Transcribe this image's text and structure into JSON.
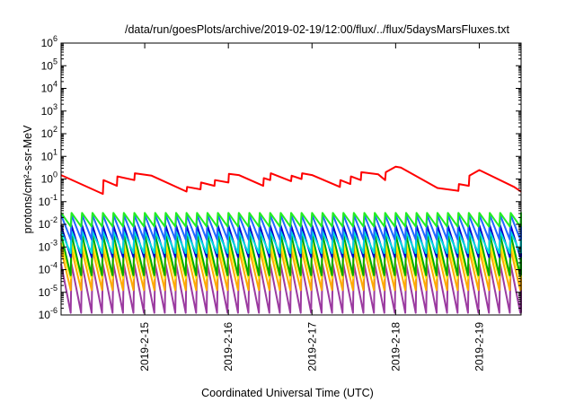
{
  "chart_data": {
    "type": "line",
    "title": "/data/run/goesPlots/archive/2019-02-19/12:00/flux/../flux/5daysMarsFluxes.txt",
    "xlabel": "Coordinated Universal Time (UTC)",
    "ylabel": "protons/cm²-s-sr-MeV",
    "y_scale": "log",
    "ylim": [
      1e-06,
      1000000.0
    ],
    "xlim": [
      "2019-02-14T00:00",
      "2019-02-19T12:00"
    ],
    "y_ticks": [
      {
        "mantissa": "10",
        "exp": "-6"
      },
      {
        "mantissa": "10",
        "exp": "-5"
      },
      {
        "mantissa": "10",
        "exp": "-4"
      },
      {
        "mantissa": "10",
        "exp": "-3"
      },
      {
        "mantissa": "10",
        "exp": "-2"
      },
      {
        "mantissa": "10",
        "exp": "-1"
      },
      {
        "mantissa": "10",
        "exp": "0"
      },
      {
        "mantissa": "10",
        "exp": "1"
      },
      {
        "mantissa": "10",
        "exp": "2"
      },
      {
        "mantissa": "10",
        "exp": "3"
      },
      {
        "mantissa": "10",
        "exp": "4"
      },
      {
        "mantissa": "10",
        "exp": "5"
      },
      {
        "mantissa": "10",
        "exp": "6"
      }
    ],
    "x_ticks": [
      {
        "label": "2019-2-15",
        "x": "2019-02-15T00:00"
      },
      {
        "label": "2019-2-16",
        "x": "2019-02-16T00:00"
      },
      {
        "label": "2019-2-17",
        "x": "2019-02-17T00:00"
      },
      {
        "label": "2019-2-18",
        "x": "2019-02-18T00:00"
      },
      {
        "label": "2019-2-19",
        "x": "2019-02-19T00:00"
      }
    ],
    "grid": false,
    "legend": "none",
    "series": [
      {
        "color": "#ff0000",
        "x": [
          "2019-02-14T00:00",
          "2019-02-14T12:00",
          "2019-02-14T12:10",
          "2019-02-14T16:00",
          "2019-02-14T16:10",
          "2019-02-14T21:00",
          "2019-02-14T21:10",
          "2019-02-15T02:00",
          "2019-02-15T12:00",
          "2019-02-15T12:10",
          "2019-02-15T16:00",
          "2019-02-15T16:10",
          "2019-02-15T20:00",
          "2019-02-15T20:10",
          "2019-02-16T00:00",
          "2019-02-16T00:10",
          "2019-02-16T03:00",
          "2019-02-16T10:00",
          "2019-02-16T10:10",
          "2019-02-16T12:00",
          "2019-02-16T12:10",
          "2019-02-16T18:00",
          "2019-02-16T18:10",
          "2019-02-16T21:00",
          "2019-02-16T21:10",
          "2019-02-17T00:00",
          "2019-02-17T08:00",
          "2019-02-17T08:10",
          "2019-02-17T11:00",
          "2019-02-17T11:10",
          "2019-02-17T14:00",
          "2019-02-17T14:10",
          "2019-02-17T19:00",
          "2019-02-17T21:00",
          "2019-02-17T21:10",
          "2019-02-18T00:00",
          "2019-02-18T01:30",
          "2019-02-18T12:00",
          "2019-02-18T18:00",
          "2019-02-18T18:10",
          "2019-02-18T21:00",
          "2019-02-18T21:10",
          "2019-02-19T00:00",
          "2019-02-19T10:00",
          "2019-02-19T12:00"
        ],
        "y": [
          1.5,
          0.22,
          0.9,
          0.5,
          1.3,
          0.9,
          1.8,
          1.4,
          0.28,
          0.45,
          0.35,
          0.7,
          0.5,
          0.9,
          0.7,
          1.7,
          1.5,
          0.5,
          1.1,
          0.9,
          1.8,
          0.8,
          1.4,
          1.0,
          1.8,
          1.5,
          0.45,
          0.9,
          0.6,
          1.3,
          0.9,
          2.0,
          1.6,
          0.9,
          2.0,
          3.5,
          3.2,
          0.4,
          0.3,
          0.6,
          0.5,
          1.4,
          2.5,
          0.45,
          0.28
        ]
      },
      {
        "color": "#22ee22",
        "base": 0.016,
        "amp": 2.0,
        "period_h": 3,
        "start": "2019-02-14T00:00",
        "end": "2019-02-19T12:00"
      },
      {
        "color": "#2266ff",
        "base": 0.0075,
        "amp": 3.5,
        "period_h": 3,
        "start": "2019-02-14T00:00",
        "end": "2019-02-19T12:00"
      },
      {
        "color": "#00dddd",
        "base": 0.0016,
        "amp": 3.0,
        "period_h": 3,
        "start": "2019-02-14T00:00",
        "end": "2019-02-19T12:00"
      },
      {
        "color": "#0000cc",
        "base": 0.0018,
        "amp": 5.0,
        "period_h": 3,
        "start": "2019-02-14T00:00",
        "end": "2019-02-19T12:00"
      },
      {
        "color": "#00aa00",
        "base": 0.00045,
        "amp": 8.0,
        "period_h": 3,
        "start": "2019-02-14T00:00",
        "end": "2019-02-19T12:00"
      },
      {
        "color": "#ffee00",
        "base": 0.00025,
        "amp": 6.0,
        "period_h": 3,
        "start": "2019-02-14T00:00",
        "end": "2019-02-19T12:00"
      },
      {
        "color": "#ffaa00",
        "base": 0.0001,
        "amp": 8.0,
        "period_h": 3,
        "start": "2019-02-14T00:00",
        "end": "2019-02-19T12:00"
      },
      {
        "color": "#9b3aa0",
        "base": 1.5e-05,
        "amp": 12.0,
        "period_h": 3,
        "start": "2019-02-14T00:00",
        "end": "2019-02-19T12:00"
      }
    ]
  }
}
